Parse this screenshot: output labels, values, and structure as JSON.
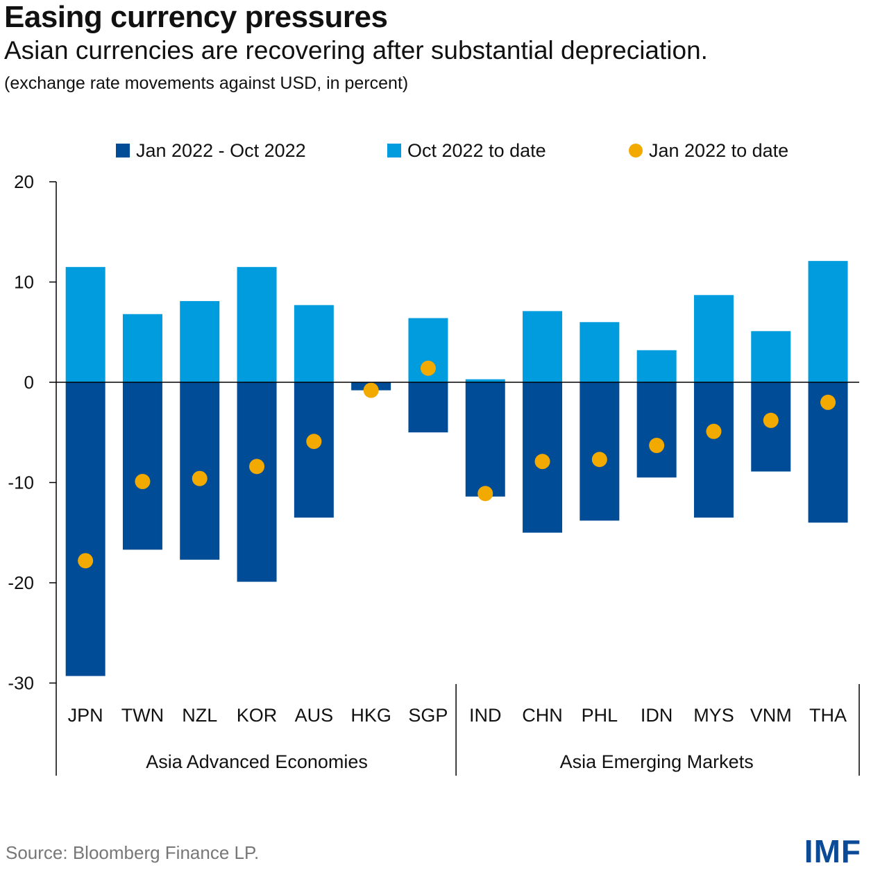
{
  "header": {
    "title": "Easing currency pressures",
    "subtitle": "Asian currencies are recovering after substantial depreciation.",
    "note": "(exchange rate movements against USD, in percent)"
  },
  "footer": {
    "source": "Source: Bloomberg Finance LP.",
    "logo": "IMF"
  },
  "colors": {
    "jan_oct": "#004c97",
    "oct_to_date": "#009cde",
    "jan_to_date": "#f2a900",
    "axis": "#000000"
  },
  "chart_data": {
    "type": "bar",
    "stacked": true,
    "title": "Easing currency pressures",
    "subtitle": "Asian currencies are recovering after substantial depreciation.",
    "ylabel": "",
    "xlabel": "",
    "ylim": [
      -30,
      20
    ],
    "yticks": [
      20,
      10,
      0,
      -10,
      -20,
      -30
    ],
    "grid": false,
    "legend_position": "top",
    "categories": [
      "JPN",
      "TWN",
      "NZL",
      "KOR",
      "AUS",
      "HKG",
      "SGP",
      "IND",
      "CHN",
      "PHL",
      "IDN",
      "MYS",
      "VNM",
      "THA"
    ],
    "groups": [
      {
        "name": "Asia Advanced Economies",
        "categories": [
          "JPN",
          "TWN",
          "NZL",
          "KOR",
          "AUS",
          "HKG",
          "SGP"
        ]
      },
      {
        "name": "Asia Emerging Markets",
        "categories": [
          "IND",
          "CHN",
          "PHL",
          "IDN",
          "MYS",
          "VNM",
          "THA"
        ]
      }
    ],
    "series": [
      {
        "name": "Jan 2022 - Oct 2022",
        "kind": "bar",
        "color": "#004c97",
        "values": [
          -29.3,
          -16.7,
          -17.7,
          -19.9,
          -13.5,
          -0.8,
          -5.0,
          -11.4,
          -15.0,
          -13.8,
          -9.5,
          -13.5,
          -8.9,
          -14.0
        ]
      },
      {
        "name": "Oct 2022 to date",
        "kind": "bar",
        "color": "#009cde",
        "values": [
          11.5,
          6.8,
          8.1,
          11.5,
          7.7,
          0.0,
          6.4,
          0.3,
          7.1,
          6.0,
          3.2,
          8.7,
          5.1,
          12.1
        ]
      },
      {
        "name": "Jan 2022 to date",
        "kind": "dot",
        "color": "#f2a900",
        "values": [
          -17.8,
          -9.9,
          -9.6,
          -8.4,
          -5.9,
          -0.8,
          1.4,
          -11.1,
          -7.9,
          -7.7,
          -6.3,
          -4.9,
          -3.8,
          -2.0
        ]
      }
    ]
  }
}
